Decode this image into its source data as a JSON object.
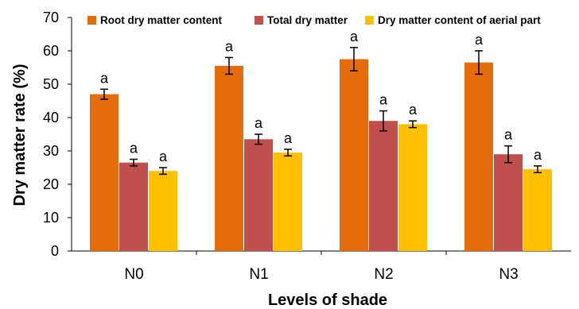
{
  "chart_data": {
    "type": "bar",
    "title": "",
    "xlabel": "Levels of shade",
    "ylabel": "Dry matter rate (%)",
    "ylim": [
      0,
      70
    ],
    "yticks": [
      0,
      10,
      20,
      30,
      40,
      50,
      60,
      70
    ],
    "categories": [
      "N0",
      "N1",
      "N2",
      "N3"
    ],
    "legend_position": "top",
    "grid": false,
    "series": [
      {
        "name": "Root dry matter content",
        "color": "#E46C0A",
        "values": [
          47.0,
          55.5,
          57.5,
          56.5
        ],
        "errors": [
          1.5,
          2.5,
          3.5,
          3.5
        ],
        "labels": [
          "a",
          "a",
          "a",
          "a"
        ]
      },
      {
        "name": "Total dry matter",
        "color": "#C0504D",
        "values": [
          26.5,
          33.5,
          39.0,
          29.0
        ],
        "errors": [
          1.0,
          1.5,
          3.0,
          2.5
        ],
        "labels": [
          "a",
          "a",
          "a",
          "a"
        ]
      },
      {
        "name": "Dry matter content of aerial part",
        "color": "#FFC000",
        "values": [
          24.0,
          29.5,
          38.0,
          24.5
        ],
        "errors": [
          1.0,
          1.0,
          1.0,
          1.0
        ],
        "labels": [
          "a",
          "a",
          "a",
          "a"
        ]
      }
    ]
  }
}
